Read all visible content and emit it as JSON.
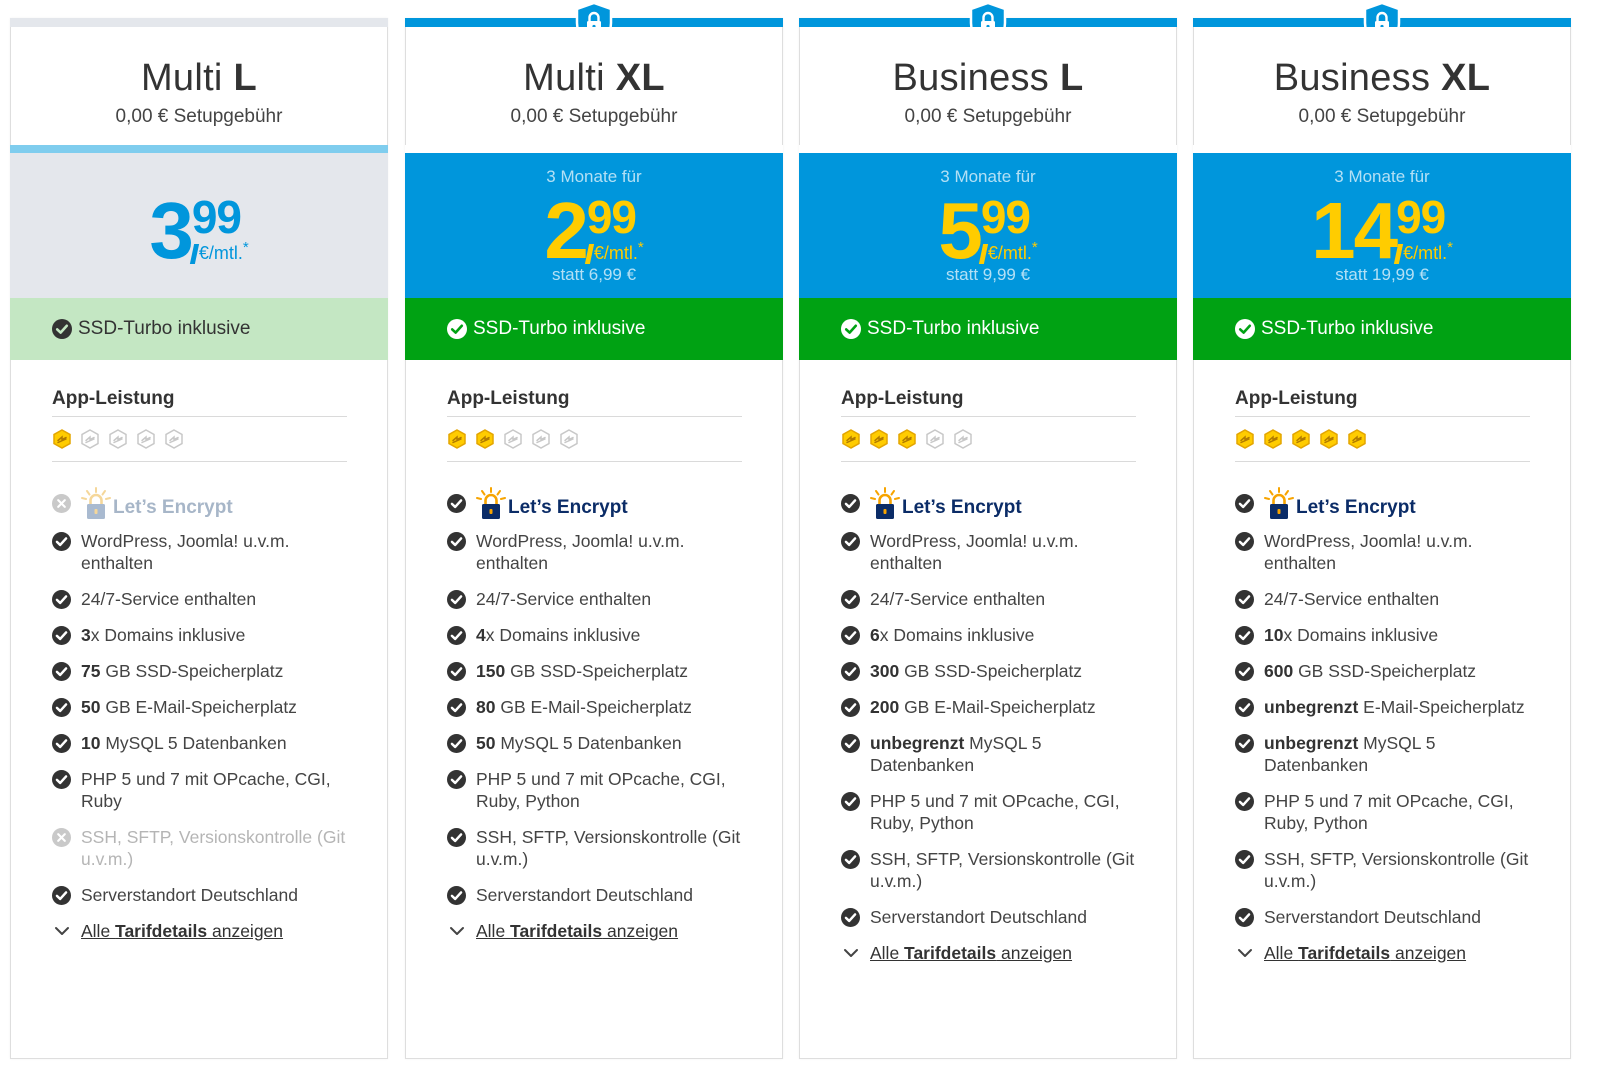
{
  "plans": [
    {
      "name_prefix": "Multi",
      "name_suffix": "L",
      "setup": "0,00 € Setupgebühr",
      "promo_intro": "",
      "price_int": "3",
      "price_dec": "99",
      "price_unit": "€/mtl.",
      "price_star": "*",
      "price_was": "",
      "ssd": "SSD-Turbo inklusive",
      "perf_title": "App-Leistung",
      "perf_level": 1,
      "perf_max": 5,
      "lets_encrypt": {
        "label": "Let’s Encrypt",
        "included": false
      },
      "features": [
        {
          "strong": "",
          "text": "WordPress, Joomla! u.v.m. enthalten",
          "included": true
        },
        {
          "strong": "",
          "text": "24/7-Service enthalten",
          "included": true
        },
        {
          "strong": "3",
          "text": "x Domains inklusive",
          "included": true
        },
        {
          "strong": "75",
          "text": " GB SSD-Speicherplatz",
          "included": true
        },
        {
          "strong": "50",
          "text": " GB E-Mail-Speicherplatz",
          "included": true
        },
        {
          "strong": "10",
          "text": " MySQL 5 Datenbanken",
          "included": true
        },
        {
          "strong": "",
          "text": "PHP 5 und 7 mit OPcache, CGI, Ruby",
          "included": true
        },
        {
          "strong": "",
          "text": "SSH, SFTP, Versionskontrolle (Git u.v.m.)",
          "included": false
        },
        {
          "strong": "",
          "text": "Serverstandort Deutschland",
          "included": true
        }
      ],
      "details_pre": "Alle ",
      "details_strong": "Tarifdetails",
      "details_post": " anzeigen"
    },
    {
      "name_prefix": "Multi",
      "name_suffix": "XL",
      "setup": "0,00 € Setupgebühr",
      "promo_intro": "3 Monate für",
      "price_int": "2",
      "price_dec": "99",
      "price_unit": "€/mtl.",
      "price_star": "*",
      "price_was": "statt 6,99 €",
      "ssd": "SSD-Turbo inklusive",
      "perf_title": "App-Leistung",
      "perf_level": 2,
      "perf_max": 5,
      "lets_encrypt": {
        "label": "Let’s Encrypt",
        "included": true
      },
      "features": [
        {
          "strong": "",
          "text": "WordPress, Joomla! u.v.m. enthalten",
          "included": true
        },
        {
          "strong": "",
          "text": "24/7-Service enthalten",
          "included": true
        },
        {
          "strong": "4",
          "text": "x Domains inklusive",
          "included": true
        },
        {
          "strong": "150",
          "text": " GB SSD-Speicherplatz",
          "included": true
        },
        {
          "strong": "80",
          "text": " GB E-Mail-Speicherplatz",
          "included": true
        },
        {
          "strong": "50",
          "text": " MySQL 5 Datenbanken",
          "included": true
        },
        {
          "strong": "",
          "text": "PHP 5 und 7 mit OPcache, CGI, Ruby, Python",
          "included": true
        },
        {
          "strong": "",
          "text": "SSH, SFTP, Versionskontrolle (Git u.v.m.)",
          "included": true
        },
        {
          "strong": "",
          "text": "Serverstandort Deutschland",
          "included": true
        }
      ],
      "details_pre": "Alle ",
      "details_strong": "Tarifdetails",
      "details_post": " anzeigen"
    },
    {
      "name_prefix": "Business",
      "name_suffix": "L",
      "setup": "0,00 € Setupgebühr",
      "promo_intro": "3 Monate für",
      "price_int": "5",
      "price_dec": "99",
      "price_unit": "€/mtl.",
      "price_star": "*",
      "price_was": "statt 9,99 €",
      "ssd": "SSD-Turbo inklusive",
      "perf_title": "App-Leistung",
      "perf_level": 3,
      "perf_max": 5,
      "lets_encrypt": {
        "label": "Let’s Encrypt",
        "included": true
      },
      "features": [
        {
          "strong": "",
          "text": "WordPress, Joomla! u.v.m. enthalten",
          "included": true
        },
        {
          "strong": "",
          "text": "24/7-Service enthalten",
          "included": true
        },
        {
          "strong": "6",
          "text": "x Domains inklusive",
          "included": true
        },
        {
          "strong": "300",
          "text": " GB SSD-Speicherplatz",
          "included": true
        },
        {
          "strong": "200",
          "text": " GB E-Mail-Speicherplatz",
          "included": true
        },
        {
          "strong": "unbegrenzt",
          "text": " MySQL 5 Datenbanken",
          "included": true
        },
        {
          "strong": "",
          "text": "PHP 5 und 7 mit OPcache, CGI, Ruby, Python",
          "included": true
        },
        {
          "strong": "",
          "text": "SSH, SFTP, Versionskontrolle (Git u.v.m.)",
          "included": true
        },
        {
          "strong": "",
          "text": "Serverstandort Deutschland",
          "included": true
        }
      ],
      "details_pre": "Alle ",
      "details_strong": "Tarifdetails",
      "details_post": " anzeigen"
    },
    {
      "name_prefix": "Business",
      "name_suffix": "XL",
      "setup": "0,00 € Setupgebühr",
      "promo_intro": "3 Monate für",
      "price_int": "14",
      "price_dec": "99",
      "price_unit": "€/mtl.",
      "price_star": "*",
      "price_was": "statt 19,99 €",
      "ssd": "SSD-Turbo inklusive",
      "perf_title": "App-Leistung",
      "perf_level": 5,
      "perf_max": 5,
      "lets_encrypt": {
        "label": "Let’s Encrypt",
        "included": true
      },
      "features": [
        {
          "strong": "",
          "text": "WordPress, Joomla! u.v.m. enthalten",
          "included": true
        },
        {
          "strong": "",
          "text": "24/7-Service enthalten",
          "included": true
        },
        {
          "strong": "10",
          "text": "x Domains inklusive",
          "included": true
        },
        {
          "strong": "600",
          "text": " GB SSD-Speicherplatz",
          "included": true
        },
        {
          "strong": "unbegrenzt",
          "text": " E-Mail-Speicherplatz",
          "included": true
        },
        {
          "strong": "unbegrenzt",
          "text": " MySQL 5 Datenbanken",
          "included": true
        },
        {
          "strong": "",
          "text": "PHP 5 und 7 mit OPcache, CGI, Ruby, Python",
          "included": true
        },
        {
          "strong": "",
          "text": "SSH, SFTP, Versionskontrolle (Git u.v.m.)",
          "included": true
        },
        {
          "strong": "",
          "text": "Serverstandort Deutschland",
          "included": true
        }
      ],
      "details_pre": "Alle ",
      "details_strong": "Tarifdetails",
      "details_post": " anzeigen"
    }
  ],
  "icons": {
    "shield": "shield-lock-icon",
    "check": "check-circle-icon",
    "cross": "x-circle-icon",
    "perf": "performance-hex-icon",
    "lets_encrypt": "lets-encrypt-logo",
    "chevron": "chevron-down-icon"
  },
  "colors": {
    "brand_blue": "#0096dc",
    "promo_yellow": "#ffcc00",
    "ssd_green": "#00a213",
    "ssd_green_light": "#c4e7c3",
    "basic_grey": "#e4e7ec",
    "le_navy": "#0b2c67"
  }
}
